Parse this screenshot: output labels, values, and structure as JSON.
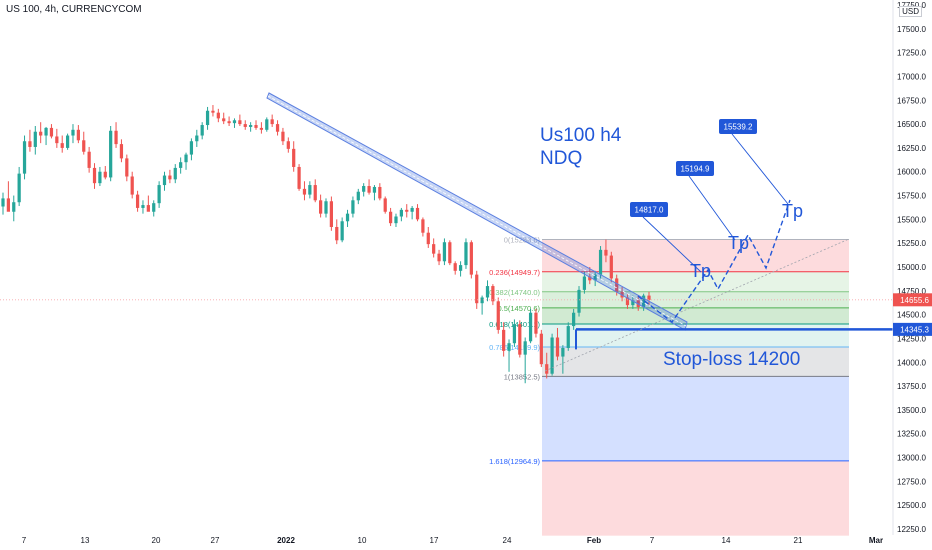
{
  "header": {
    "title": "US 100, 4h, CURRENCYCOM",
    "currency": "USD"
  },
  "chart_data": {
    "type": "candlestick",
    "title": "US 100, 4h, CURRENCYCOM",
    "y_axis": {
      "range": [
        12250,
        17750
      ],
      "ticks": [
        "17750.0",
        "17500.0",
        "17250.0",
        "17000.0",
        "16750.0",
        "16500.0",
        "16250.0",
        "16000.0",
        "15750.0",
        "15500.0",
        "15250.0",
        "15000.0",
        "14750.0",
        "14500.0",
        "14250.0",
        "14000.0",
        "13750.0",
        "13500.0",
        "13250.0",
        "13000.0",
        "12750.0",
        "12500.0",
        "12250.0"
      ]
    },
    "x_axis": {
      "ticks": [
        "7",
        "13",
        "20",
        "27",
        "2022",
        "10",
        "17",
        "24",
        "Feb",
        "7",
        "14",
        "21",
        "Mar"
      ]
    },
    "price_labels": {
      "current": "14655.6",
      "stop_line": "14345.3"
    },
    "annotations": {
      "heading_line1": "Us100 h4",
      "heading_line2": "NDQ",
      "stop_loss": "Stop-loss 14200",
      "tp_label": "Tp",
      "targets": [
        "14817.0",
        "15194.9",
        "15539.2"
      ]
    },
    "fib_levels": [
      {
        "label": "0(15288.6)",
        "price": 15288.6
      },
      {
        "label": "0.236(14949.7)",
        "price": 14949.7
      },
      {
        "label": "0.382(14740.0)",
        "price": 14740.0
      },
      {
        "label": "0.5(14570.6)",
        "price": 14570.6
      },
      {
        "label": "0.618(14401.1)",
        "price": 14401.1
      },
      {
        "label": "0.786(14159.9)",
        "price": 14159.9
      },
      {
        "label": "1(13852.5)",
        "price": 13852.5
      },
      {
        "label": "1.618(12964.9)",
        "price": 12964.9
      }
    ],
    "candles": [
      [
        15635,
        15780,
        15550,
        15720
      ],
      [
        15720,
        15900,
        15600,
        15580
      ],
      [
        15580,
        15750,
        15480,
        15680
      ],
      [
        15680,
        16050,
        15640,
        15980
      ],
      [
        15980,
        16380,
        15920,
        16320
      ],
      [
        16320,
        16440,
        16210,
        16260
      ],
      [
        16260,
        16480,
        16180,
        16420
      ],
      [
        16420,
        16520,
        16300,
        16380
      ],
      [
        16380,
        16470,
        16280,
        16460
      ],
      [
        16460,
        16500,
        16350,
        16370
      ],
      [
        16370,
        16450,
        16250,
        16300
      ],
      [
        16300,
        16380,
        16200,
        16250
      ],
      [
        16250,
        16400,
        16230,
        16380
      ],
      [
        16380,
        16500,
        16300,
        16440
      ],
      [
        16440,
        16490,
        16300,
        16330
      ],
      [
        16330,
        16420,
        16180,
        16210
      ],
      [
        16210,
        16260,
        15990,
        16040
      ],
      [
        16040,
        16090,
        15820,
        15880
      ],
      [
        15880,
        16050,
        15850,
        16000
      ],
      [
        16000,
        16060,
        15920,
        15940
      ],
      [
        15940,
        16480,
        15900,
        16430
      ],
      [
        16430,
        16520,
        16250,
        16290
      ],
      [
        16290,
        16340,
        16100,
        16140
      ],
      [
        16140,
        16180,
        15900,
        15950
      ],
      [
        15950,
        16000,
        15720,
        15760
      ],
      [
        15760,
        15800,
        15580,
        15620
      ],
      [
        15620,
        15700,
        15560,
        15650
      ],
      [
        15650,
        15750,
        15600,
        15580
      ],
      [
        15580,
        15700,
        15530,
        15670
      ],
      [
        15670,
        15900,
        15620,
        15860
      ],
      [
        15860,
        16000,
        15800,
        15960
      ],
      [
        15960,
        16020,
        15880,
        15920
      ],
      [
        15920,
        16080,
        15880,
        16040
      ],
      [
        16040,
        16150,
        15980,
        16100
      ],
      [
        16100,
        16200,
        16020,
        16180
      ],
      [
        16180,
        16350,
        16120,
        16320
      ],
      [
        16320,
        16440,
        16260,
        16380
      ],
      [
        16380,
        16520,
        16340,
        16490
      ],
      [
        16490,
        16680,
        16440,
        16640
      ],
      [
        16640,
        16700,
        16580,
        16620
      ],
      [
        16620,
        16660,
        16520,
        16560
      ],
      [
        16560,
        16620,
        16500,
        16530
      ],
      [
        16530,
        16580,
        16480,
        16510
      ],
      [
        16510,
        16560,
        16460,
        16540
      ],
      [
        16540,
        16600,
        16480,
        16500
      ],
      [
        16500,
        16540,
        16440,
        16470
      ],
      [
        16470,
        16520,
        16420,
        16490
      ],
      [
        16490,
        16540,
        16440,
        16460
      ],
      [
        16460,
        16520,
        16400,
        16440
      ],
      [
        16440,
        16570,
        16420,
        16550
      ],
      [
        16550,
        16600,
        16470,
        16500
      ],
      [
        16500,
        16540,
        16380,
        16420
      ],
      [
        16420,
        16460,
        16280,
        16320
      ],
      [
        16320,
        16360,
        16200,
        16240
      ],
      [
        16240,
        16320,
        16000,
        16050
      ],
      [
        16050,
        16080,
        15800,
        15820
      ],
      [
        15820,
        15900,
        15700,
        15760
      ],
      [
        15760,
        15900,
        15720,
        15860
      ],
      [
        15860,
        15920,
        15680,
        15700
      ],
      [
        15700,
        15760,
        15520,
        15560
      ],
      [
        15560,
        15720,
        15520,
        15690
      ],
      [
        15690,
        15740,
        15380,
        15420
      ],
      [
        15420,
        15500,
        15240,
        15280
      ],
      [
        15280,
        15520,
        15260,
        15480
      ],
      [
        15480,
        15600,
        15420,
        15560
      ],
      [
        15560,
        15740,
        15520,
        15700
      ],
      [
        15700,
        15820,
        15660,
        15790
      ],
      [
        15790,
        15880,
        15740,
        15850
      ],
      [
        15850,
        15920,
        15760,
        15780
      ],
      [
        15780,
        15860,
        15700,
        15840
      ],
      [
        15840,
        15880,
        15700,
        15720
      ],
      [
        15720,
        15740,
        15560,
        15580
      ],
      [
        15580,
        15620,
        15430,
        15460
      ],
      [
        15460,
        15560,
        15420,
        15530
      ],
      [
        15530,
        15620,
        15480,
        15600
      ],
      [
        15600,
        15660,
        15520,
        15580
      ],
      [
        15580,
        15640,
        15500,
        15620
      ],
      [
        15620,
        15660,
        15480,
        15500
      ],
      [
        15500,
        15520,
        15320,
        15360
      ],
      [
        15360,
        15420,
        15200,
        15240
      ],
      [
        15240,
        15300,
        15100,
        15140
      ],
      [
        15140,
        15180,
        15020,
        15060
      ],
      [
        15060,
        15300,
        15020,
        15260
      ],
      [
        15260,
        15280,
        15020,
        15040
      ],
      [
        15040,
        15060,
        14920,
        14960
      ],
      [
        14960,
        15060,
        14900,
        15020
      ],
      [
        15020,
        15300,
        14980,
        15260
      ],
      [
        15260,
        15280,
        14880,
        14920
      ],
      [
        14920,
        14960,
        14560,
        14620
      ],
      [
        14620,
        14700,
        14500,
        14680
      ],
      [
        14680,
        14860,
        14640,
        14800
      ],
      [
        14800,
        14820,
        14600,
        14640
      ],
      [
        14640,
        14680,
        14300,
        14340
      ],
      [
        14340,
        14420,
        14060,
        14120
      ],
      [
        14120,
        14240,
        13900,
        14200
      ],
      [
        14200,
        14450,
        14160,
        14400
      ],
      [
        14400,
        14440,
        14050,
        14080
      ],
      [
        14080,
        14260,
        13780,
        14220
      ],
      [
        14220,
        14560,
        14200,
        14520
      ],
      [
        14520,
        14560,
        14260,
        14300
      ],
      [
        14300,
        14340,
        13950,
        13980
      ],
      [
        13980,
        14100,
        13830,
        13880
      ],
      [
        13880,
        14300,
        13860,
        14260
      ],
      [
        14260,
        14360,
        14020,
        14060
      ],
      [
        14060,
        14180,
        13880,
        14150
      ],
      [
        14150,
        14420,
        14120,
        14380
      ],
      [
        14380,
        14560,
        14340,
        14520
      ],
      [
        14520,
        14800,
        14480,
        14760
      ],
      [
        14760,
        14950,
        14720,
        14900
      ],
      [
        14900,
        15000,
        14820,
        14860
      ],
      [
        14860,
        14960,
        14800,
        14920
      ],
      [
        14920,
        15220,
        14880,
        15180
      ],
      [
        15180,
        15288,
        15050,
        15120
      ],
      [
        15120,
        15160,
        14840,
        14880
      ],
      [
        14880,
        14920,
        14700,
        14740
      ],
      [
        14740,
        14790,
        14640,
        14680
      ],
      [
        14680,
        14720,
        14560,
        14600
      ],
      [
        14600,
        14700,
        14560,
        14650
      ],
      [
        14650,
        14700,
        14540,
        14580
      ],
      [
        14580,
        14720,
        14540,
        14700
      ],
      [
        14700,
        14740,
        14600,
        14655
      ]
    ]
  }
}
